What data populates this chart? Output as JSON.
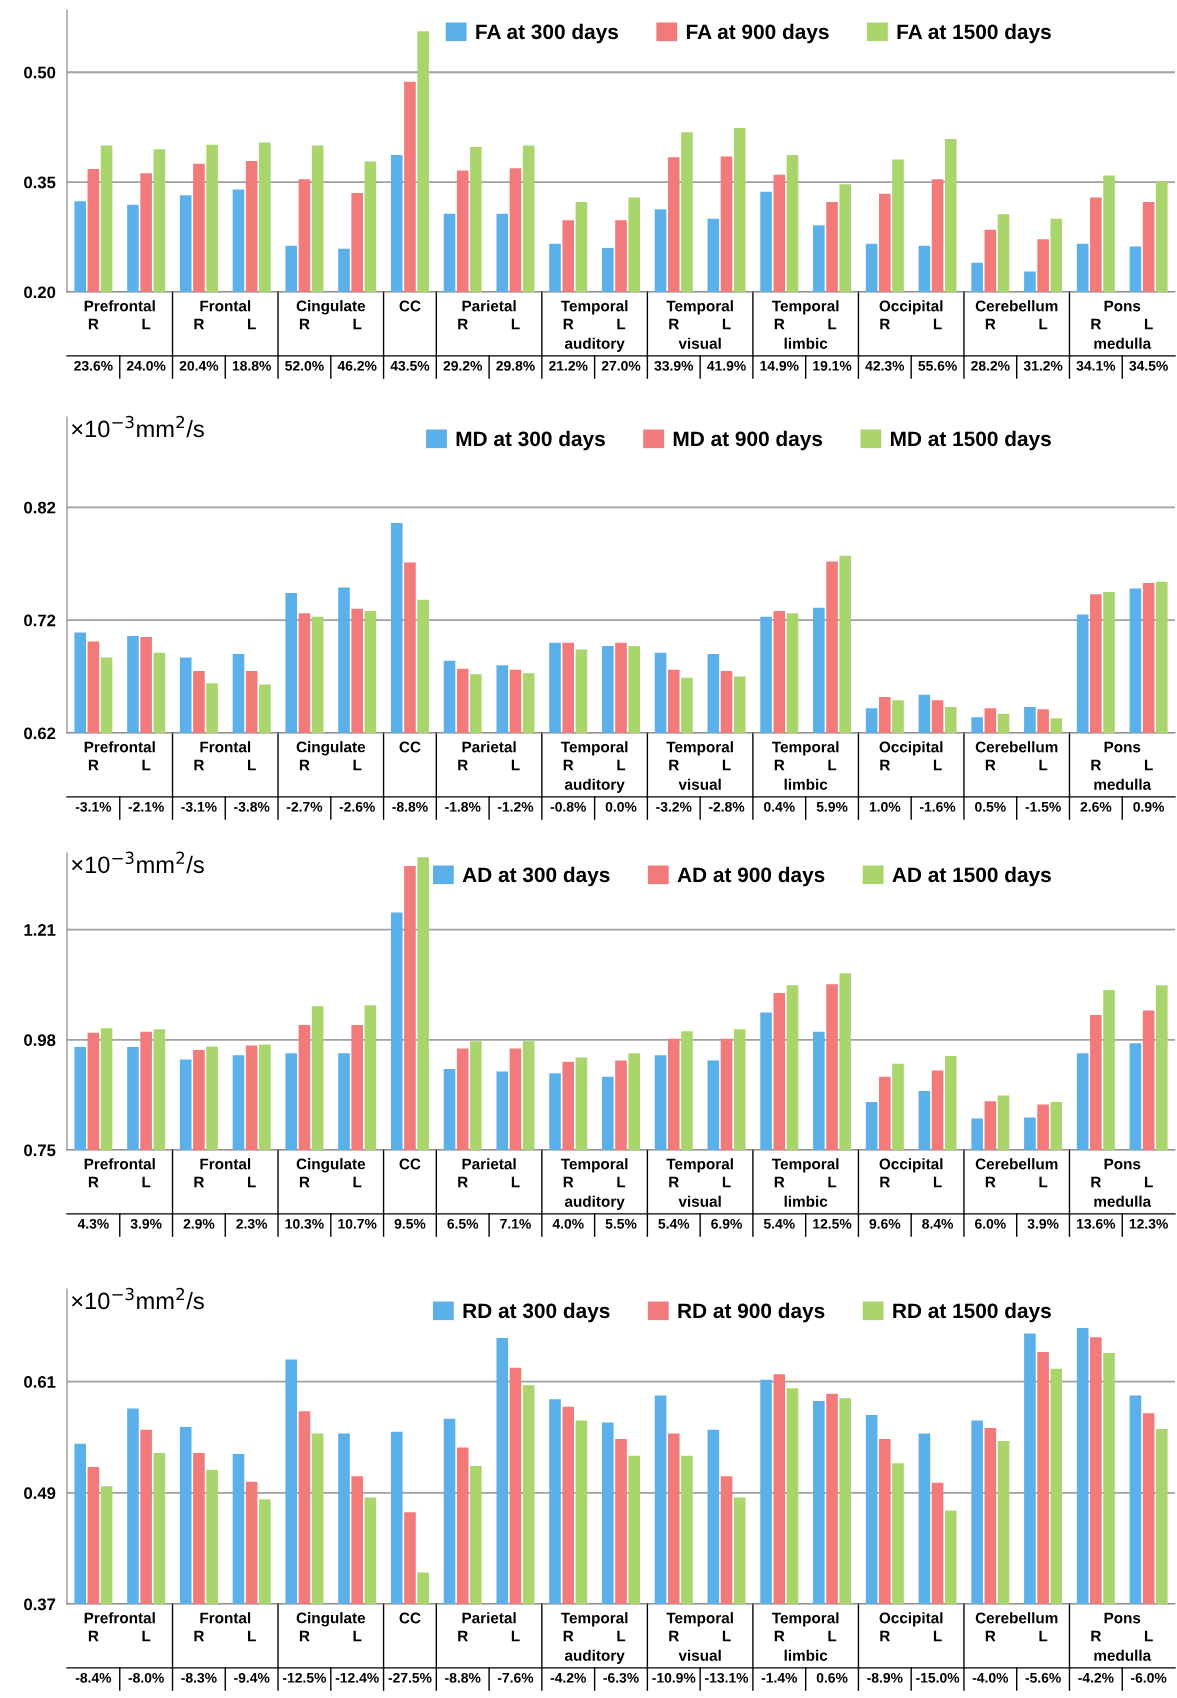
{
  "chart_data": [
    {
      "type": "bar",
      "categories": [
        "R",
        "L",
        "R",
        "L",
        "R",
        "L",
        null,
        "R",
        "L",
        "R",
        "L",
        "R",
        "L",
        "R",
        "L",
        "R",
        "L",
        "R",
        "L",
        "R",
        "L"
      ],
      "series": [
        {
          "name": "FA at 300 days",
          "color": "#5bb0ea",
          "values": [
            0.324,
            0.319,
            0.332,
            0.34,
            0.263,
            0.259,
            0.387,
            0.307,
            0.307,
            0.266,
            0.26,
            0.313,
            0.3,
            0.337,
            0.291,
            0.266,
            0.263,
            0.24,
            0.228,
            0.266,
            0.262
          ]
        },
        {
          "name": "FA at 900 days",
          "color": "#f27a7a",
          "values": [
            0.368,
            0.362,
            0.375,
            0.379,
            0.354,
            0.335,
            0.487,
            0.366,
            0.369,
            0.298,
            0.298,
            0.384,
            0.385,
            0.36,
            0.323,
            0.334,
            0.354,
            0.285,
            0.272,
            0.329,
            0.323
          ]
        },
        {
          "name": "FA at 1500 days",
          "color": "#aad56c",
          "values": [
            0.4,
            0.395,
            0.401,
            0.404,
            0.4,
            0.378,
            0.556,
            0.398,
            0.4,
            0.323,
            0.329,
            0.418,
            0.424,
            0.387,
            0.347,
            0.381,
            0.409,
            0.306,
            0.3,
            0.359,
            0.351
          ]
        }
      ],
      "ylim": [
        0.2,
        0.585
      ],
      "yticks": [
        {
          "value": 0.2,
          "label": "0.20"
        },
        0.35,
        {
          "value": 0.5,
          "label": "0.50"
        }
      ],
      "grid": "y",
      "legend": "top right",
      "annotations": [
        "Prefrontal",
        "Frontal",
        "Cingulate",
        "CC",
        "Parietal",
        "Temporal\nauditory",
        "Temporal\nvisual",
        "Temporal\nlimbic",
        "Occipital",
        "Cerebellum",
        "Pons\nmedulla",
        "23.6%",
        "24.0%",
        "20.4%",
        "18.8%",
        "52.0%",
        "46.2%",
        "43.5%",
        "29.2%",
        "29.8%",
        "21.2%",
        "27.0%",
        "33.9%",
        "41.9%",
        "14.9%",
        "19.1%",
        "42.3%",
        "55.6%",
        "28.2%",
        "31.2%",
        "34.1%",
        "34.5%"
      ]
    },
    {
      "type": "bar",
      "ylabel": "×10$^{−3}$mm$^{2}$/s",
      "categories": [
        "R",
        "L",
        "R",
        "L",
        "R",
        "L",
        null,
        "R",
        "L",
        "R",
        "L",
        "R",
        "L",
        "R",
        "L",
        "R",
        "L",
        "R",
        "L",
        "R",
        "L"
      ],
      "series": [
        {
          "name": "MD at 300 days",
          "color": "#5bb0ea",
          "values": [
            0.709,
            0.706,
            0.687,
            0.69,
            0.744,
            0.749,
            0.806,
            0.684,
            0.68,
            0.7,
            0.697,
            0.691,
            0.69,
            0.723,
            0.731,
            0.642,
            0.654,
            0.634,
            0.643,
            0.725,
            0.748
          ]
        },
        {
          "name": "MD at 900 days",
          "color": "#f27a7a",
          "values": [
            0.701,
            0.705,
            0.675,
            0.675,
            0.726,
            0.73,
            0.771,
            0.677,
            0.676,
            0.7,
            0.7,
            0.676,
            0.675,
            0.728,
            0.772,
            0.652,
            0.649,
            0.642,
            0.641,
            0.743,
            0.753
          ]
        },
        {
          "name": "MD at 1500 days",
          "color": "#aad56c",
          "values": [
            0.687,
            0.691,
            0.664,
            0.663,
            0.723,
            0.728,
            0.738,
            0.672,
            0.673,
            0.694,
            0.697,
            0.669,
            0.67,
            0.726,
            0.777,
            0.649,
            0.643,
            0.637,
            0.633,
            0.745,
            0.754
          ]
        }
      ],
      "ylim": [
        0.62,
        0.9
      ],
      "yticks": [
        0.62,
        0.72,
        0.82
      ],
      "grid": "y",
      "legend": "top right",
      "annotations": [
        "Prefrontal",
        "Frontal",
        "Cingulate",
        "CC",
        "Parietal",
        "Temporal\nauditory",
        "Temporal\nvisual",
        "Temporal\nlimbic",
        "Occipital",
        "Cerebellum",
        "Pons\nmedulla",
        "-3.1%",
        "-2.1%",
        "-3.1%",
        "-3.8%",
        "-2.7%",
        "-2.6%",
        "-8.8%",
        "-1.8%",
        "-1.2%",
        "-0.8%",
        "0.0%",
        "-3.2%",
        "-2.8%",
        "0.4%",
        "5.9%",
        "1.0%",
        "-1.6%",
        "0.5%",
        "-1.5%",
        "2.6%",
        "0.9%"
      ]
    },
    {
      "type": "bar",
      "ylabel": "×10$^{−3}$mm$^{2}$/s",
      "categories": [
        "R",
        "L",
        "R",
        "L",
        "R",
        "L",
        null,
        "R",
        "L",
        "R",
        "L",
        "R",
        "L",
        "R",
        "L",
        "R",
        "L",
        "R",
        "L",
        "R",
        "L"
      ],
      "series": [
        {
          "name": "AD at 300 days",
          "color": "#5bb0ea",
          "values": [
            0.965,
            0.965,
            0.939,
            0.948,
            0.952,
            0.952,
            1.246,
            0.919,
            0.914,
            0.91,
            0.903,
            0.948,
            0.937,
            1.037,
            0.997,
            0.85,
            0.873,
            0.816,
            0.818,
            0.952,
            0.973
          ]
        },
        {
          "name": "AD at 900 days",
          "color": "#f27a7a",
          "values": [
            0.995,
            0.997,
            0.959,
            0.968,
            1.011,
            1.011,
            1.343,
            0.962,
            0.962,
            0.934,
            0.937,
            0.982,
            0.982,
            1.078,
            1.096,
            0.903,
            0.916,
            0.852,
            0.845,
            1.032,
            1.041
          ]
        },
        {
          "name": "AD at 1500 days",
          "color": "#aad56c",
          "values": [
            1.004,
            1.002,
            0.966,
            0.97,
            1.05,
            1.052,
            1.361,
            0.977,
            0.977,
            0.943,
            0.952,
            0.998,
            1.002,
            1.094,
            1.119,
            0.93,
            0.946,
            0.864,
            0.85,
            1.084,
            1.094
          ]
        }
      ],
      "ylim": [
        0.75,
        1.37
      ],
      "yticks": [
        0.75,
        0.98,
        1.21
      ],
      "grid": "y",
      "legend": "top right",
      "annotations": [
        "Prefrontal",
        "Frontal",
        "Cingulate",
        "CC",
        "Parietal",
        "Temporal\nauditory",
        "Temporal\nvisual",
        "Temporal\nlimbic",
        "Occipital",
        "Cerebellum",
        "Pons\nmedulla",
        "4.3%",
        "3.9%",
        "2.9%",
        "2.3%",
        "10.3%",
        "10.7%",
        "9.5%",
        "6.5%",
        "7.1%",
        "4.0%",
        "5.5%",
        "5.4%",
        "6.9%",
        "5.4%",
        "12.5%",
        "9.6%",
        "8.4%",
        "6.0%",
        "3.9%",
        "13.6%",
        "12.3%"
      ]
    },
    {
      "type": "bar",
      "ylabel": "×10$^{−3}$mm$^{2}$/s",
      "categories": [
        "R",
        "L",
        "R",
        "L",
        "R",
        "L",
        null,
        "R",
        "L",
        "R",
        "L",
        "R",
        "L",
        "R",
        "L",
        "R",
        "L",
        "R",
        "L",
        "R",
        "L"
      ],
      "series": [
        {
          "name": "RD at 300 days",
          "color": "#5bb0ea",
          "values": [
            0.543,
            0.581,
            0.561,
            0.532,
            0.634,
            0.554,
            0.556,
            0.57,
            0.657,
            0.591,
            0.566,
            0.595,
            0.558,
            0.612,
            0.589,
            0.574,
            0.554,
            0.568,
            0.662,
            0.668,
            0.595
          ]
        },
        {
          "name": "RD at 900 days",
          "color": "#f27a7a",
          "values": [
            0.518,
            0.558,
            0.533,
            0.502,
            0.578,
            0.508,
            0.469,
            0.539,
            0.625,
            0.583,
            0.548,
            0.554,
            0.508,
            0.618,
            0.597,
            0.548,
            0.501,
            0.56,
            0.642,
            0.658,
            0.576
          ]
        },
        {
          "name": "RD at 1500 days",
          "color": "#aad56c",
          "values": [
            0.497,
            0.533,
            0.515,
            0.483,
            0.554,
            0.485,
            0.404,
            0.519,
            0.606,
            0.568,
            0.53,
            0.53,
            0.485,
            0.603,
            0.592,
            0.522,
            0.471,
            0.546,
            0.624,
            0.641,
            0.559
          ]
        }
      ],
      "ylim": [
        0.37,
        0.71
      ],
      "yticks": [
        0.37,
        0.49,
        0.61
      ],
      "grid": "y",
      "legend": "top right",
      "annotations": [
        "Prefrontal",
        "Frontal",
        "Cingulate",
        "CC",
        "Parietal",
        "Temporal\nauditory",
        "Temporal\nvisual",
        "Temporal\nlimbic",
        "Occipital",
        "Cerebellum",
        "Pons\nmedulla",
        "-8.4%",
        "-8.0%",
        "-8.3%",
        "-9.4%",
        "-12.5%",
        "-12.4%",
        "-27.5%",
        "-8.8%",
        "-7.6%",
        "-4.2%",
        "-6.3%",
        "-10.9%",
        "-13.1%",
        "-1.4%",
        "0.6%",
        "-8.9%",
        "-15.0%",
        "-4.0%",
        "-5.6%",
        "-4.2%",
        "-6.0%"
      ]
    }
  ]
}
